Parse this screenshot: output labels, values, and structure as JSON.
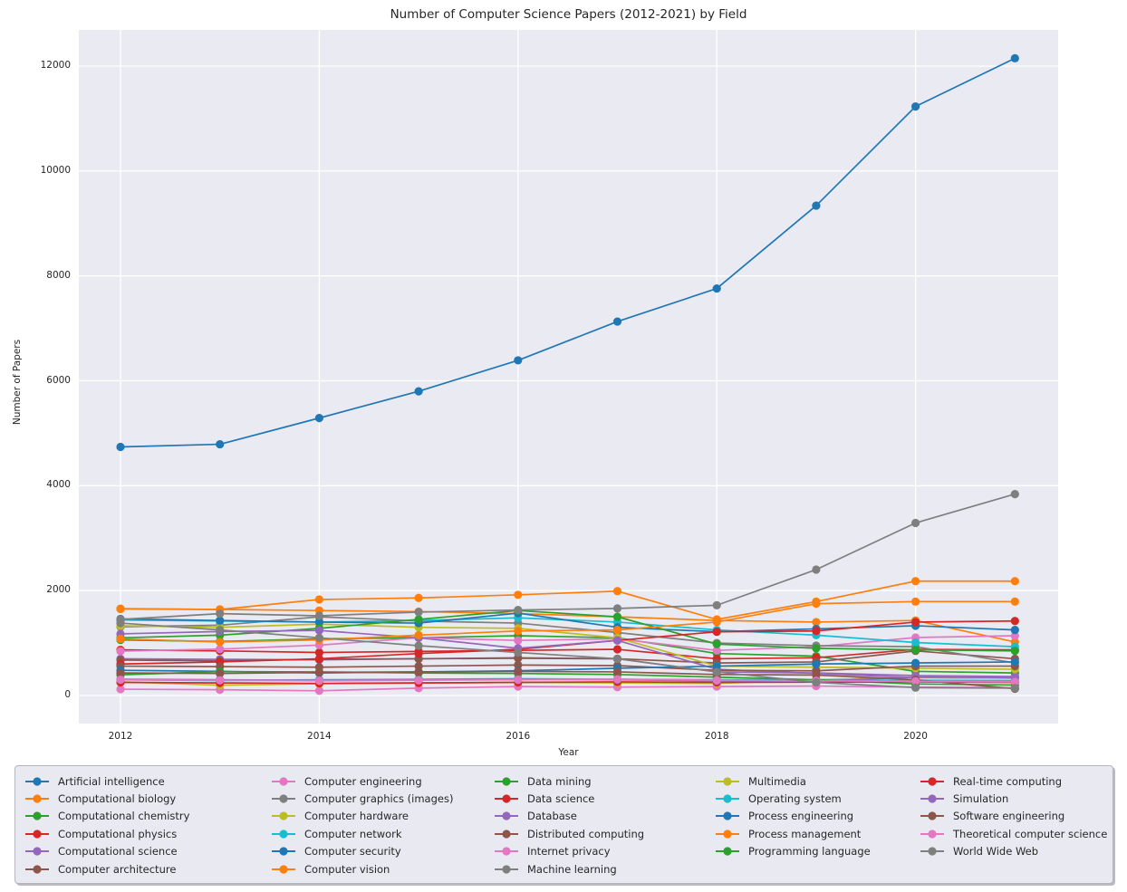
{
  "figure": {
    "background": "#ffffff",
    "plot_background": "#eaeaf2",
    "grid_color": "#ffffff",
    "text_color": "#262626"
  },
  "chart_data": {
    "type": "line",
    "title": "Number of Computer Science Papers (2012-2021) by Field",
    "xlabel": "Year",
    "ylabel": "Number of Papers",
    "x": [
      2012,
      2013,
      2014,
      2015,
      2016,
      2017,
      2018,
      2019,
      2020,
      2021
    ],
    "xticks": [
      2012,
      2014,
      2016,
      2018,
      2020
    ],
    "yticks": [
      0,
      2000,
      4000,
      6000,
      8000,
      10000,
      12000
    ],
    "xlim": [
      2011.58,
      2021.44
    ],
    "ylim": [
      -570,
      12690
    ],
    "grid": true,
    "marker": "circle",
    "legend_position": "below-plot",
    "legend_columns": 5,
    "series": [
      {
        "name": "Artificial intelligence",
        "color": "#1f77b4",
        "values": [
          4740,
          4790,
          5290,
          5800,
          6390,
          7130,
          7760,
          9340,
          11230,
          12150
        ]
      },
      {
        "name": "Computational biology",
        "color": "#ff7f0e",
        "values": [
          1655,
          1640,
          1620,
          1600,
          1560,
          1500,
          1430,
          1400,
          1430,
          1020
        ]
      },
      {
        "name": "Computational chemistry",
        "color": "#2ca02c",
        "values": [
          1060,
          1030,
          1080,
          1100,
          1140,
          1100,
          800,
          750,
          460,
          430
        ]
      },
      {
        "name": "Computational physics",
        "color": "#d62728",
        "values": [
          870,
          850,
          820,
          840,
          860,
          880,
          700,
          720,
          880,
          870
        ]
      },
      {
        "name": "Computational science",
        "color": "#9467bd",
        "values": [
          700,
          690,
          680,
          700,
          720,
          700,
          450,
          430,
          380,
          360
        ]
      },
      {
        "name": "Computer architecture",
        "color": "#8c564b",
        "values": [
          675,
          660,
          690,
          700,
          710,
          700,
          620,
          640,
          850,
          700
        ]
      },
      {
        "name": "Computer engineering",
        "color": "#e377c2",
        "values": [
          845,
          885,
          960,
          1100,
          1050,
          1080,
          860,
          930,
          1105,
          1140
        ]
      },
      {
        "name": "Computer graphics (images)",
        "color": "#7f7f7f",
        "values": [
          1310,
          1340,
          1500,
          1420,
          1380,
          1200,
          1000,
          950,
          930,
          620
        ]
      },
      {
        "name": "Computer hardware",
        "color": "#bcbd22",
        "values": [
          1330,
          1300,
          1360,
          1300,
          1280,
          1100,
          560,
          540,
          520,
          500
        ]
      },
      {
        "name": "Computer network",
        "color": "#17becf",
        "values": [
          1440,
          1420,
          1400,
          1430,
          1480,
          1400,
          1250,
          1150,
          1010,
          930
        ]
      },
      {
        "name": "Computer security",
        "color": "#1f77b4",
        "values": [
          1460,
          1430,
          1400,
          1380,
          1570,
          1300,
          1215,
          1270,
          1330,
          1250
        ]
      },
      {
        "name": "Computer vision",
        "color": "#ff7f0e",
        "values": [
          1650,
          1640,
          1830,
          1860,
          1920,
          1990,
          1450,
          1790,
          2180,
          2180
        ]
      },
      {
        "name": "Data mining",
        "color": "#2ca02c",
        "values": [
          1100,
          1150,
          1280,
          1450,
          1620,
          1500,
          980,
          900,
          870,
          850
        ]
      },
      {
        "name": "Data science",
        "color": "#d62728",
        "values": [
          600,
          640,
          700,
          800,
          880,
          1050,
          1215,
          1230,
          1400,
          1420
        ]
      },
      {
        "name": "Database",
        "color": "#9467bd",
        "values": [
          1175,
          1220,
          1240,
          1100,
          900,
          1050,
          500,
          420,
          340,
          330
        ]
      },
      {
        "name": "Distributed computing",
        "color": "#8c564b",
        "values": [
          560,
          550,
          540,
          560,
          580,
          570,
          480,
          470,
          560,
          560
        ]
      },
      {
        "name": "Internet privacy",
        "color": "#e377c2",
        "values": [
          120,
          110,
          90,
          140,
          170,
          160,
          170,
          180,
          160,
          150
        ]
      },
      {
        "name": "Machine learning",
        "color": "#7f7f7f",
        "values": [
          1450,
          1560,
          1520,
          1590,
          1630,
          1660,
          1720,
          2400,
          3290,
          3840
        ]
      },
      {
        "name": "Multimedia",
        "color": "#bcbd22",
        "values": [
          260,
          195,
          225,
          240,
          250,
          240,
          230,
          300,
          345,
          330
        ]
      },
      {
        "name": "Operating system",
        "color": "#17becf",
        "values": [
          300,
          285,
          300,
          310,
          320,
          310,
          300,
          295,
          290,
          285
        ]
      },
      {
        "name": "Process engineering",
        "color": "#1f77b4",
        "values": [
          480,
          460,
          430,
          450,
          470,
          520,
          560,
          600,
          620,
          640
        ]
      },
      {
        "name": "Process management",
        "color": "#ff7f0e",
        "values": [
          1080,
          1020,
          1060,
          1150,
          1230,
          1250,
          1400,
          1750,
          1790,
          1790
        ]
      },
      {
        "name": "Programming language",
        "color": "#2ca02c",
        "values": [
          395,
          455,
          450,
          430,
          420,
          400,
          350,
          300,
          220,
          200
        ]
      },
      {
        "name": "Real-time computing",
        "color": "#d62728",
        "values": [
          250,
          240,
          230,
          240,
          250,
          260,
          250,
          255,
          260,
          250
        ]
      },
      {
        "name": "Simulation",
        "color": "#9467bd",
        "values": [
          310,
          300,
          290,
          300,
          310,
          300,
          280,
          270,
          350,
          340
        ]
      },
      {
        "name": "Software engineering",
        "color": "#8c564b",
        "values": [
          430,
          420,
          440,
          450,
          460,
          450,
          400,
          390,
          300,
          130
        ]
      },
      {
        "name": "Theoretical computer science",
        "color": "#e377c2",
        "values": [
          300,
          290,
          280,
          290,
          300,
          310,
          290,
          280,
          270,
          260
        ]
      },
      {
        "name": "World Wide Web",
        "color": "#7f7f7f",
        "values": [
          1380,
          1250,
          1100,
          950,
          820,
          700,
          450,
          250,
          150,
          140
        ]
      }
    ]
  }
}
